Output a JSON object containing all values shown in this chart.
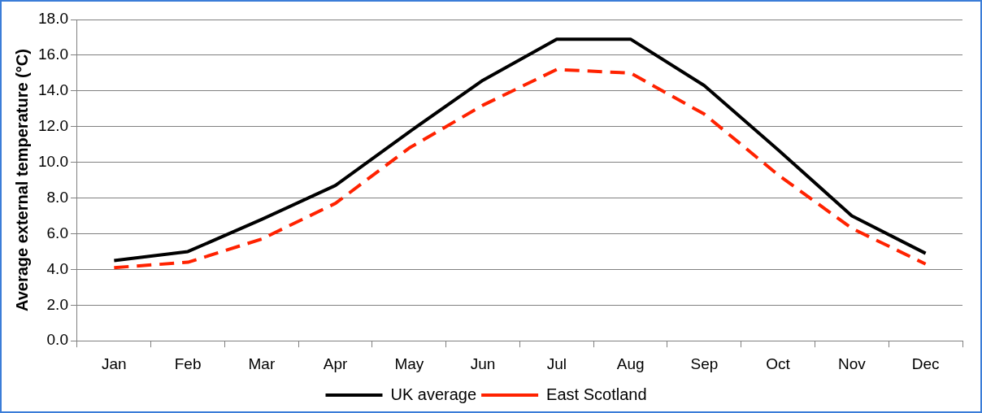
{
  "chart_data": {
    "type": "line",
    "ylabel": "Average external temperature (°C)",
    "categories": [
      "Jan",
      "Feb",
      "Mar",
      "Apr",
      "May",
      "Jun",
      "Jul",
      "Aug",
      "Sep",
      "Oct",
      "Nov",
      "Dec"
    ],
    "series": [
      {
        "name": "UK average",
        "color": "#000000",
        "line_style": "solid",
        "values": [
          4.5,
          5.0,
          6.8,
          8.7,
          11.7,
          14.6,
          16.9,
          16.9,
          14.3,
          10.7,
          7.0,
          4.9
        ]
      },
      {
        "name": "East Scotland",
        "color": "#ff2200",
        "line_style": "dashed",
        "values": [
          4.1,
          4.4,
          5.7,
          7.7,
          10.8,
          13.2,
          15.2,
          15.0,
          12.7,
          9.3,
          6.3,
          4.3
        ]
      }
    ],
    "ylim": [
      0,
      18
    ],
    "yticks": [
      {
        "value": 0,
        "label": "0.0"
      },
      {
        "value": 2,
        "label": "2.0"
      },
      {
        "value": 4,
        "label": "4.0"
      },
      {
        "value": 6,
        "label": "6.0"
      },
      {
        "value": 8,
        "label": "8.0"
      },
      {
        "value": 10,
        "label": "10.0"
      },
      {
        "value": 12,
        "label": "12.0"
      },
      {
        "value": 14,
        "label": "14.0"
      },
      {
        "value": 16,
        "label": "16.0"
      },
      {
        "value": 18,
        "label": "18.0"
      }
    ],
    "grid": "y",
    "legend": "bottom"
  }
}
